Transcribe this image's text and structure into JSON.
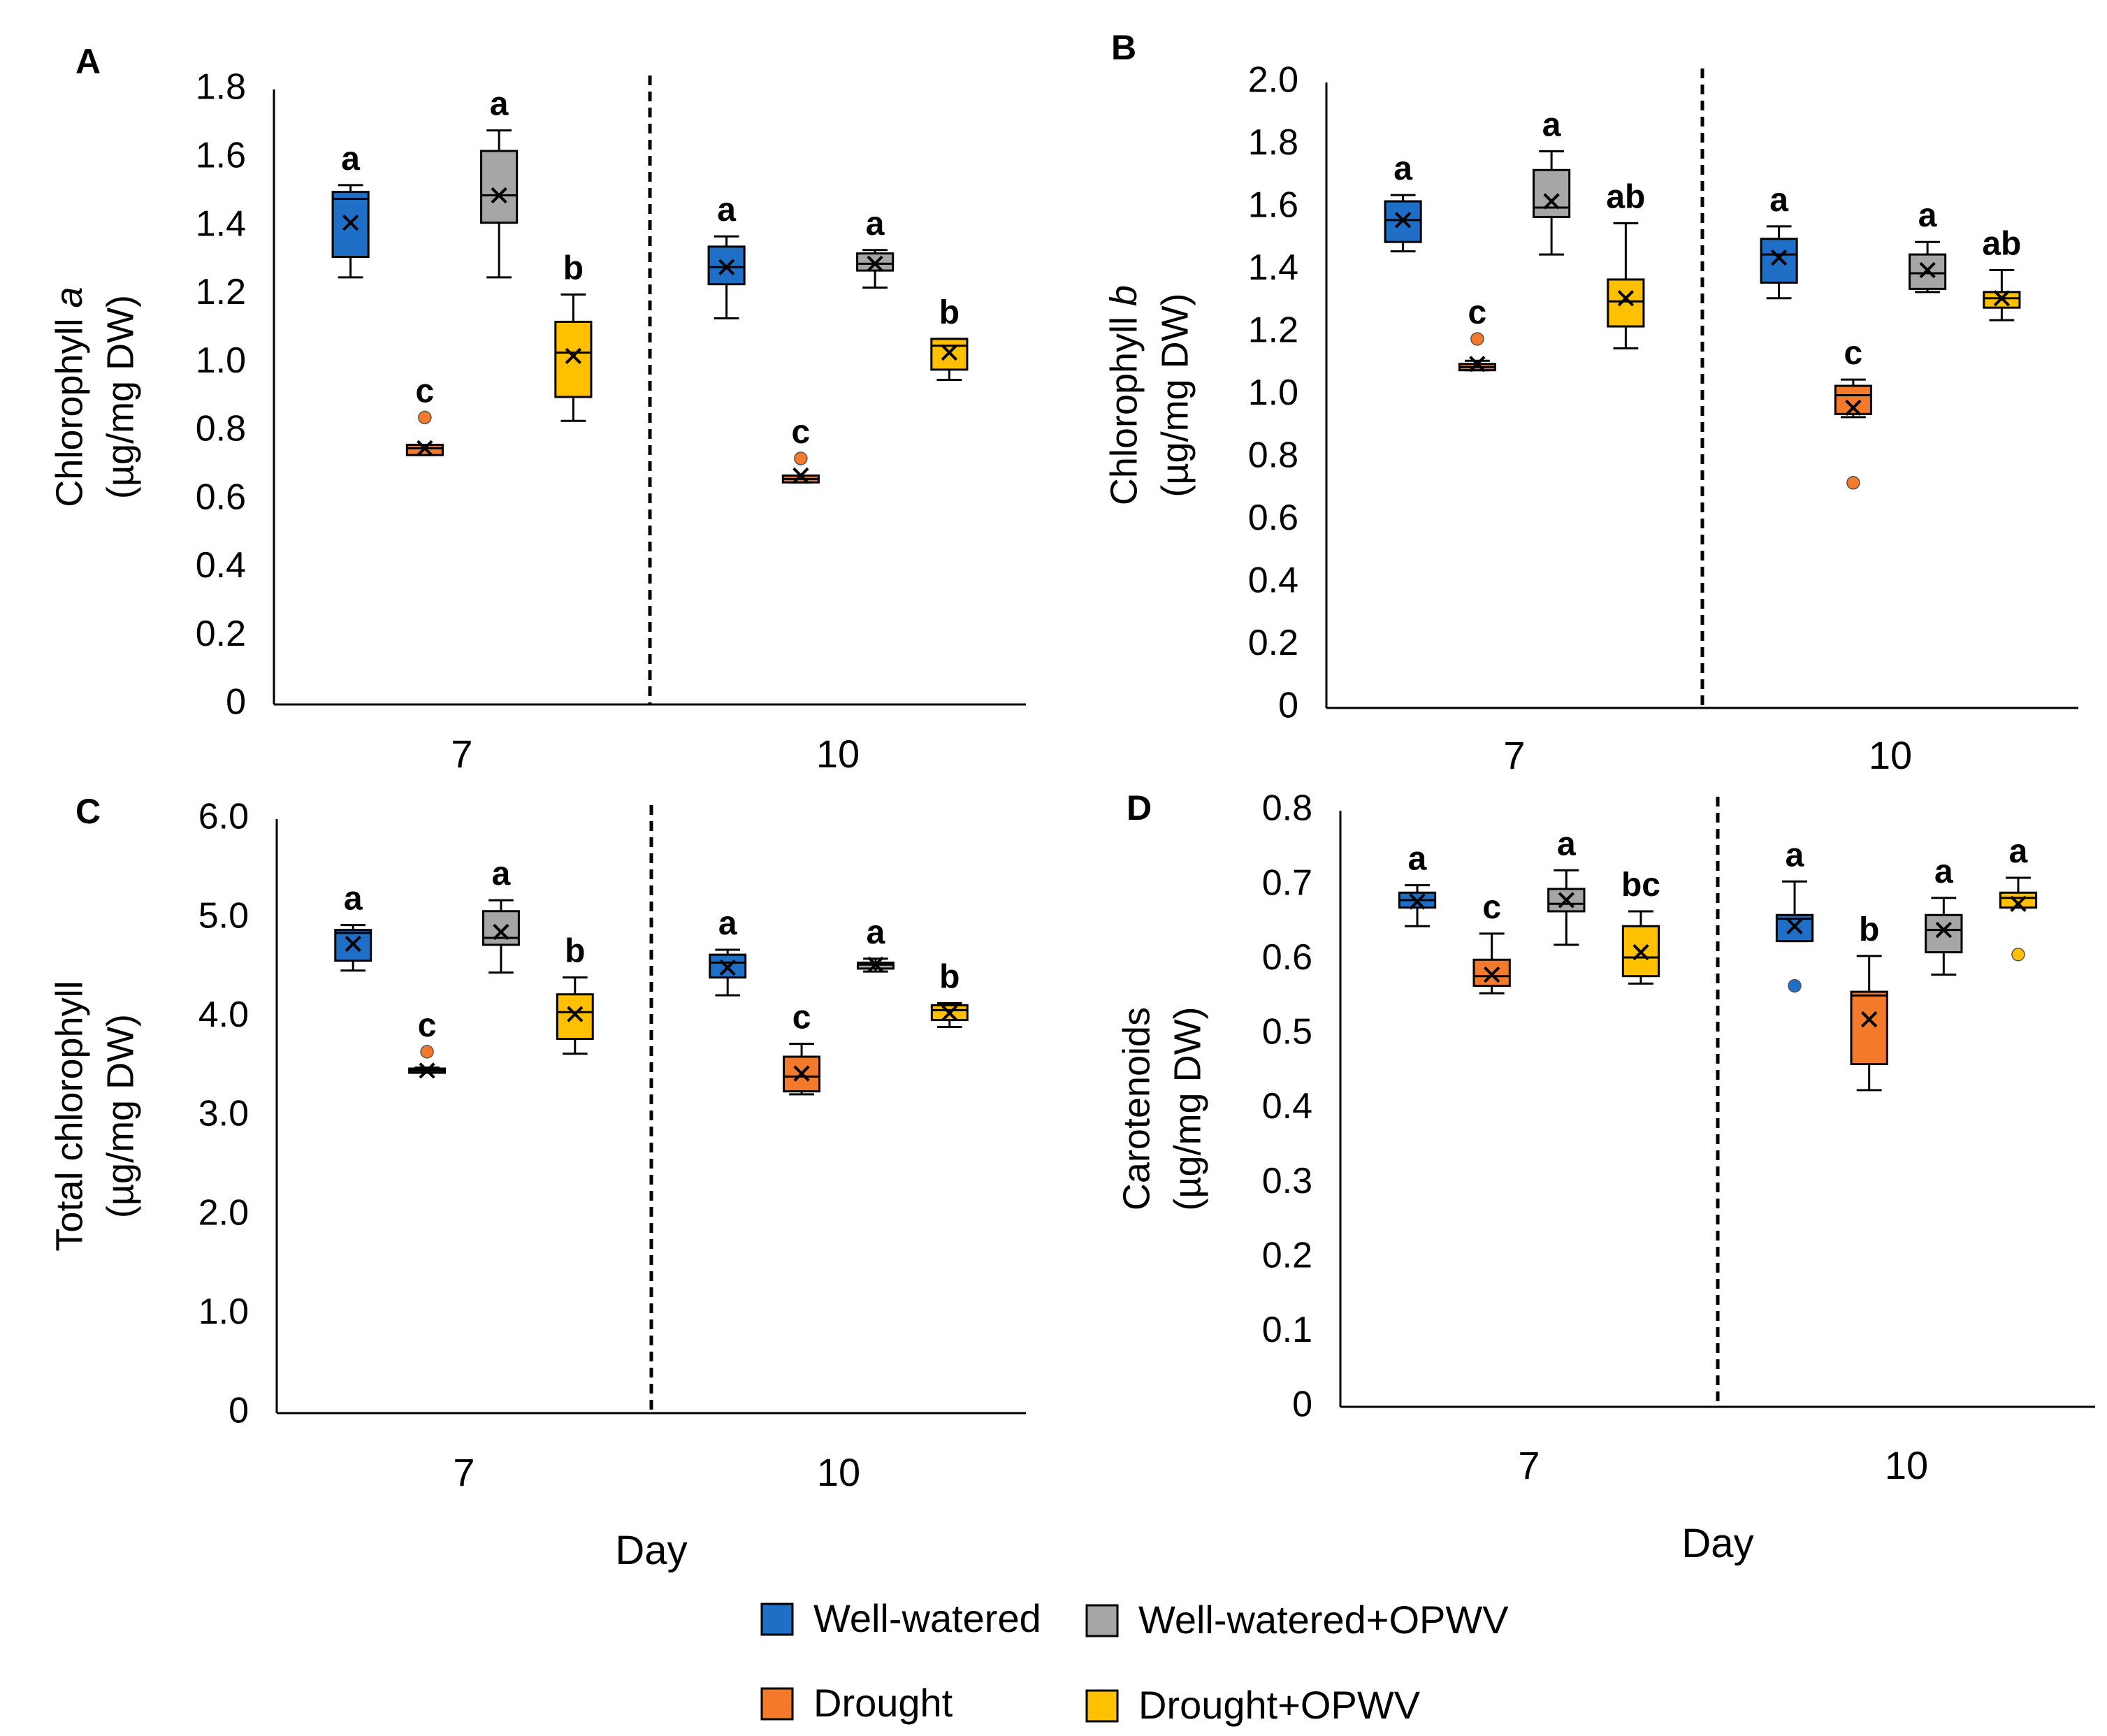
{
  "series": [
    {
      "key": "ww",
      "name": "Well-watered",
      "color": "#1f6fc6"
    },
    {
      "key": "dr",
      "name": "Drought",
      "color": "#f47a2b"
    },
    {
      "key": "wwo",
      "name": "Well-watered+OPWV",
      "color": "#a6a6a6"
    },
    {
      "key": "dro",
      "name": "Drought+OPWV",
      "color": "#ffc000"
    }
  ],
  "legend_order": [
    "ww",
    "wwo",
    "dr",
    "dro"
  ],
  "chart_data": [
    {
      "panel": "A",
      "type": "box",
      "ylabel": [
        "Chlorophyll a",
        "(µg/mg DW)"
      ],
      "ylabel_italic_word": "a",
      "xlabel": "",
      "ylim": [
        0,
        1.8
      ],
      "ytick_labels": [
        "0",
        "0.2",
        "0.4",
        "0.6",
        "0.8",
        "1.0",
        "1.2",
        "1.4",
        "1.6",
        "1.8"
      ],
      "categories": [
        "7",
        "10"
      ],
      "series_order": [
        "ww",
        "dr",
        "wwo",
        "dro"
      ],
      "groups": [
        {
          "day": "7",
          "boxes": [
            {
              "series": "ww",
              "min": 1.25,
              "q1": 1.31,
              "median": 1.48,
              "q3": 1.5,
              "max": 1.52,
              "mean": 1.41,
              "outliers": [],
              "letter": "a"
            },
            {
              "series": "dr",
              "min": 0.73,
              "q1": 0.73,
              "median": 0.75,
              "q3": 0.76,
              "max": 0.76,
              "mean": 0.75,
              "outliers": [
                0.84
              ],
              "letter": "c"
            },
            {
              "series": "wwo",
              "min": 1.25,
              "q1": 1.41,
              "median": 1.49,
              "q3": 1.62,
              "max": 1.68,
              "mean": 1.49,
              "outliers": [],
              "letter": "a"
            },
            {
              "series": "dro",
              "min": 0.83,
              "q1": 0.9,
              "median": 1.03,
              "q3": 1.12,
              "max": 1.2,
              "mean": 1.02,
              "outliers": [],
              "letter": "b"
            }
          ]
        },
        {
          "day": "10",
          "boxes": [
            {
              "series": "ww",
              "min": 1.13,
              "q1": 1.23,
              "median": 1.28,
              "q3": 1.34,
              "max": 1.37,
              "mean": 1.28,
              "outliers": [],
              "letter": "a"
            },
            {
              "series": "dr",
              "min": 0.65,
              "q1": 0.65,
              "median": 0.66,
              "q3": 0.67,
              "max": 0.67,
              "mean": 0.67,
              "outliers": [
                0.72
              ],
              "letter": "c"
            },
            {
              "series": "wwo",
              "min": 1.22,
              "q1": 1.27,
              "median": 1.29,
              "q3": 1.32,
              "max": 1.33,
              "mean": 1.29,
              "outliers": [],
              "letter": "a"
            },
            {
              "series": "dro",
              "min": 0.95,
              "q1": 0.98,
              "median": 1.05,
              "q3": 1.07,
              "max": 1.07,
              "mean": 1.03,
              "outliers": [],
              "letter": "b"
            }
          ]
        }
      ]
    },
    {
      "panel": "B",
      "type": "box",
      "ylabel": [
        "Chlorophyll b",
        "(µg/mg DW)"
      ],
      "ylabel_italic_word": "b",
      "xlabel": "",
      "ylim": [
        0,
        2.0
      ],
      "ytick_labels": [
        "0",
        "0.2",
        "0.4",
        "0.6",
        "0.8",
        "1.0",
        "1.2",
        "1.4",
        "1.6",
        "1.8",
        "2.0"
      ],
      "categories": [
        "7",
        "10"
      ],
      "series_order": [
        "ww",
        "dr",
        "wwo",
        "dro"
      ],
      "groups": [
        {
          "day": "7",
          "boxes": [
            {
              "series": "ww",
              "min": 1.46,
              "q1": 1.49,
              "median": 1.56,
              "q3": 1.62,
              "max": 1.64,
              "mean": 1.56,
              "outliers": [],
              "letter": "a"
            },
            {
              "series": "dr",
              "min": 1.08,
              "q1": 1.08,
              "median": 1.09,
              "q3": 1.1,
              "max": 1.11,
              "mean": 1.1,
              "outliers": [
                1.18
              ],
              "letter": "c"
            },
            {
              "series": "wwo",
              "min": 1.45,
              "q1": 1.57,
              "median": 1.6,
              "q3": 1.72,
              "max": 1.78,
              "mean": 1.62,
              "outliers": [],
              "letter": "a"
            },
            {
              "series": "dro",
              "min": 1.15,
              "q1": 1.22,
              "median": 1.3,
              "q3": 1.37,
              "max": 1.55,
              "mean": 1.31,
              "outliers": [],
              "letter": "ab"
            }
          ]
        },
        {
          "day": "10",
          "boxes": [
            {
              "series": "ww",
              "min": 1.31,
              "q1": 1.36,
              "median": 1.45,
              "q3": 1.5,
              "max": 1.54,
              "mean": 1.44,
              "outliers": [],
              "letter": "a"
            },
            {
              "series": "dr",
              "min": 0.93,
              "q1": 0.94,
              "median": 1.0,
              "q3": 1.03,
              "max": 1.05,
              "mean": 0.96,
              "outliers": [
                0.72
              ],
              "letter": "c"
            },
            {
              "series": "wwo",
              "min": 1.33,
              "q1": 1.34,
              "median": 1.39,
              "q3": 1.45,
              "max": 1.49,
              "mean": 1.4,
              "outliers": [],
              "letter": "a"
            },
            {
              "series": "dro",
              "min": 1.24,
              "q1": 1.28,
              "median": 1.31,
              "q3": 1.33,
              "max": 1.4,
              "mean": 1.31,
              "outliers": [],
              "letter": "ab"
            }
          ]
        }
      ]
    },
    {
      "panel": "C",
      "type": "box",
      "ylabel": [
        "Total chlorophyll",
        "(µg/mg DW)"
      ],
      "ylabel_italic_word": "",
      "xlabel": "Day",
      "ylim": [
        0,
        6.0
      ],
      "ytick_labels": [
        "0",
        "1.0",
        "2.0",
        "3.0",
        "4.0",
        "5.0",
        "6.0"
      ],
      "categories": [
        "7",
        "10"
      ],
      "series_order": [
        "ww",
        "dr",
        "wwo",
        "dro"
      ],
      "groups": [
        {
          "day": "7",
          "boxes": [
            {
              "series": "ww",
              "min": 4.47,
              "q1": 4.57,
              "median": 4.85,
              "q3": 4.88,
              "max": 4.93,
              "mean": 4.74,
              "outliers": [],
              "letter": "a"
            },
            {
              "series": "dr",
              "min": 3.44,
              "q1": 3.44,
              "median": 3.46,
              "q3": 3.48,
              "max": 3.49,
              "mean": 3.46,
              "outliers": [
                3.65
              ],
              "letter": "c"
            },
            {
              "series": "wwo",
              "min": 4.45,
              "q1": 4.73,
              "median": 4.8,
              "q3": 5.07,
              "max": 5.18,
              "mean": 4.86,
              "outliers": [],
              "letter": "a"
            },
            {
              "series": "dro",
              "min": 3.63,
              "q1": 3.78,
              "median": 4.05,
              "q3": 4.23,
              "max": 4.4,
              "mean": 4.03,
              "outliers": [],
              "letter": "b"
            }
          ]
        },
        {
          "day": "10",
          "boxes": [
            {
              "series": "ww",
              "min": 4.22,
              "q1": 4.4,
              "median": 4.55,
              "q3": 4.63,
              "max": 4.68,
              "mean": 4.5,
              "outliers": [],
              "letter": "a"
            },
            {
              "series": "dr",
              "min": 3.22,
              "q1": 3.25,
              "median": 3.4,
              "q3": 3.6,
              "max": 3.73,
              "mean": 3.43,
              "outliers": [],
              "letter": "c"
            },
            {
              "series": "wwo",
              "min": 4.46,
              "q1": 4.49,
              "median": 4.53,
              "q3": 4.55,
              "max": 4.59,
              "mean": 4.53,
              "outliers": [],
              "letter": "a"
            },
            {
              "series": "dro",
              "min": 3.9,
              "q1": 3.97,
              "median": 4.07,
              "q3": 4.12,
              "max": 4.14,
              "mean": 4.04,
              "outliers": [],
              "letter": "b"
            }
          ]
        }
      ]
    },
    {
      "panel": "D",
      "type": "box",
      "ylabel": [
        "Carotenoids",
        "(µg/mg DW)"
      ],
      "ylabel_italic_word": "",
      "xlabel": "Day",
      "ylim": [
        0,
        0.8
      ],
      "ytick_labels": [
        "0",
        "0.1",
        "0.2",
        "0.3",
        "0.4",
        "0.5",
        "0.6",
        "0.7",
        "0.8"
      ],
      "categories": [
        "7",
        "10"
      ],
      "series_order": [
        "ww",
        "dr",
        "wwo",
        "dro"
      ],
      "groups": [
        {
          "day": "7",
          "boxes": [
            {
              "series": "ww",
              "min": 0.645,
              "q1": 0.67,
              "median": 0.68,
              "q3": 0.69,
              "max": 0.7,
              "mean": 0.678,
              "outliers": [],
              "letter": "a"
            },
            {
              "series": "dr",
              "min": 0.555,
              "q1": 0.565,
              "median": 0.578,
              "q3": 0.6,
              "max": 0.635,
              "mean": 0.58,
              "outliers": [],
              "letter": "c"
            },
            {
              "series": "wwo",
              "min": 0.62,
              "q1": 0.665,
              "median": 0.675,
              "q3": 0.695,
              "max": 0.72,
              "mean": 0.68,
              "outliers": [],
              "letter": "a"
            },
            {
              "series": "dro",
              "min": 0.568,
              "q1": 0.578,
              "median": 0.603,
              "q3": 0.645,
              "max": 0.665,
              "mean": 0.61,
              "outliers": [],
              "letter": "bc"
            }
          ]
        },
        {
          "day": "10",
          "boxes": [
            {
              "series": "ww",
              "min": 0.625,
              "q1": 0.625,
              "median": 0.655,
              "q3": 0.66,
              "max": 0.705,
              "mean": 0.645,
              "outliers": [
                0.565
              ],
              "letter": "a"
            },
            {
              "series": "dr",
              "min": 0.425,
              "q1": 0.46,
              "median": 0.552,
              "q3": 0.557,
              "max": 0.605,
              "mean": 0.52,
              "outliers": [],
              "letter": "b"
            },
            {
              "series": "wwo",
              "min": 0.58,
              "q1": 0.61,
              "median": 0.64,
              "q3": 0.66,
              "max": 0.683,
              "mean": 0.64,
              "outliers": [],
              "letter": "a"
            },
            {
              "series": "dro",
              "min": 0.67,
              "q1": 0.67,
              "median": 0.683,
              "q3": 0.69,
              "max": 0.71,
              "mean": 0.675,
              "outliers": [
                0.607
              ],
              "letter": "a"
            }
          ]
        }
      ]
    }
  ]
}
